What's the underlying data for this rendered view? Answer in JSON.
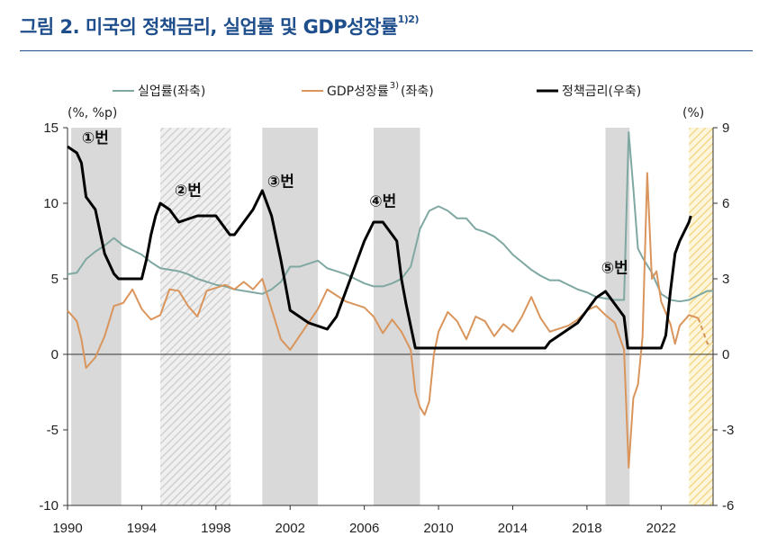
{
  "title": {
    "main": "그림 2. 미국의 정책금리, 실업률 및 GDP성장률",
    "sup": "1)2)"
  },
  "chart_data": {
    "type": "line",
    "left_unit": "(%, %p)",
    "right_unit": "(%)",
    "left_ylim": [
      -10,
      15
    ],
    "right_ylim": [
      -6,
      9
    ],
    "left_ticks": [
      "15",
      "10",
      "5",
      "0",
      "-5",
      "-10"
    ],
    "right_ticks": [
      "9",
      "6",
      "3",
      "0",
      "-3",
      "-6"
    ],
    "xlim": [
      1990,
      2024.8
    ],
    "x_ticks": [
      "1990",
      "1994",
      "1998",
      "2002",
      "2006",
      "2010",
      "2014",
      "2018",
      "2022"
    ],
    "legend": [
      {
        "label": "실업률(좌축)",
        "sup": "",
        "color": "#7fa8a2"
      },
      {
        "label": "GDP성장률",
        "sup": "3)",
        "suffix": "(좌축)",
        "color": "#d9955c"
      },
      {
        "label": "정책금리(우축)",
        "sup": "",
        "color": "#000000"
      }
    ],
    "shaded_periods": [
      {
        "start": 1990.2,
        "end": 1992.9,
        "style": "solid"
      },
      {
        "start": 1995.0,
        "end": 1998.8,
        "style": "hatched"
      },
      {
        "start": 2000.5,
        "end": 2003.5,
        "style": "solid"
      },
      {
        "start": 2006.5,
        "end": 2009.0,
        "style": "solid"
      },
      {
        "start": 2019.0,
        "end": 2020.3,
        "style": "solid"
      },
      {
        "start": 2023.5,
        "end": 2024.8,
        "style": "hatched-yellow"
      }
    ],
    "annotations": [
      {
        "text": "①번",
        "x": 1991.5,
        "y": 14.0
      },
      {
        "text": "②번",
        "x": 1996.5,
        "y": 10.5
      },
      {
        "text": "③번",
        "x": 2001.5,
        "y": 11.1
      },
      {
        "text": "④번",
        "x": 2007.0,
        "y": 9.8
      },
      {
        "text": "⑤번",
        "x": 2019.5,
        "y": 5.4
      }
    ],
    "series": [
      {
        "name": "실업률(좌축)",
        "axis": "left",
        "color": "#7fa8a2",
        "points": [
          [
            1990,
            5.3
          ],
          [
            1990.5,
            5.4
          ],
          [
            1991,
            6.3
          ],
          [
            1991.5,
            6.8
          ],
          [
            1992,
            7.2
          ],
          [
            1992.5,
            7.7
          ],
          [
            1993,
            7.2
          ],
          [
            1993.5,
            6.9
          ],
          [
            1994,
            6.6
          ],
          [
            1994.5,
            6.1
          ],
          [
            1995,
            5.7
          ],
          [
            1995.5,
            5.6
          ],
          [
            1996,
            5.5
          ],
          [
            1996.5,
            5.3
          ],
          [
            1997,
            5.0
          ],
          [
            1997.5,
            4.8
          ],
          [
            1998,
            4.6
          ],
          [
            1998.5,
            4.5
          ],
          [
            1999,
            4.3
          ],
          [
            1999.5,
            4.2
          ],
          [
            2000,
            4.1
          ],
          [
            2000.5,
            4.0
          ],
          [
            2001,
            4.3
          ],
          [
            2001.5,
            4.8
          ],
          [
            2002,
            5.8
          ],
          [
            2002.5,
            5.8
          ],
          [
            2003,
            6.0
          ],
          [
            2003.5,
            6.2
          ],
          [
            2004,
            5.7
          ],
          [
            2004.5,
            5.5
          ],
          [
            2005,
            5.3
          ],
          [
            2005.5,
            5.0
          ],
          [
            2006,
            4.7
          ],
          [
            2006.5,
            4.5
          ],
          [
            2007,
            4.5
          ],
          [
            2007.5,
            4.7
          ],
          [
            2008,
            5.0
          ],
          [
            2008.5,
            5.8
          ],
          [
            2009,
            8.3
          ],
          [
            2009.5,
            9.5
          ],
          [
            2010,
            9.8
          ],
          [
            2010.5,
            9.5
          ],
          [
            2011,
            9.0
          ],
          [
            2011.5,
            9.0
          ],
          [
            2012,
            8.3
          ],
          [
            2012.5,
            8.1
          ],
          [
            2013,
            7.8
          ],
          [
            2013.5,
            7.3
          ],
          [
            2014,
            6.6
          ],
          [
            2014.5,
            6.1
          ],
          [
            2015,
            5.6
          ],
          [
            2015.5,
            5.2
          ],
          [
            2016,
            4.9
          ],
          [
            2016.5,
            4.9
          ],
          [
            2017,
            4.6
          ],
          [
            2017.5,
            4.3
          ],
          [
            2018,
            4.1
          ],
          [
            2018.5,
            3.8
          ],
          [
            2019,
            3.7
          ],
          [
            2019.5,
            3.6
          ],
          [
            2020,
            3.6
          ],
          [
            2020.25,
            14.7
          ],
          [
            2020.5,
            11.0
          ],
          [
            2020.75,
            7.0
          ],
          [
            2021,
            6.4
          ],
          [
            2021.5,
            5.4
          ],
          [
            2022,
            4.0
          ],
          [
            2022.5,
            3.6
          ],
          [
            2023,
            3.5
          ],
          [
            2023.5,
            3.6
          ],
          [
            2024,
            3.9
          ],
          [
            2024.5,
            4.2
          ],
          [
            2024.8,
            4.2
          ]
        ]
      },
      {
        "name": "GDP성장률",
        "axis": "left",
        "color": "#d9955c",
        "dash_from": 2024.0,
        "points": [
          [
            1990,
            2.9
          ],
          [
            1990.5,
            2.2
          ],
          [
            1990.75,
            1.0
          ],
          [
            1991,
            -0.9
          ],
          [
            1991.5,
            -0.2
          ],
          [
            1992,
            1.2
          ],
          [
            1992.5,
            3.2
          ],
          [
            1993,
            3.4
          ],
          [
            1993.5,
            4.3
          ],
          [
            1994,
            3.0
          ],
          [
            1994.5,
            2.3
          ],
          [
            1995,
            2.6
          ],
          [
            1995.5,
            4.3
          ],
          [
            1996,
            4.2
          ],
          [
            1996.5,
            3.2
          ],
          [
            1997,
            2.5
          ],
          [
            1997.5,
            4.2
          ],
          [
            1998,
            4.4
          ],
          [
            1998.5,
            4.6
          ],
          [
            1999,
            4.3
          ],
          [
            1999.5,
            4.8
          ],
          [
            2000,
            4.3
          ],
          [
            2000.5,
            5.0
          ],
          [
            2001,
            3.0
          ],
          [
            2001.5,
            1.0
          ],
          [
            2002,
            0.3
          ],
          [
            2002.5,
            1.2
          ],
          [
            2003,
            2.1
          ],
          [
            2003.5,
            3.0
          ],
          [
            2004,
            4.3
          ],
          [
            2004.5,
            3.9
          ],
          [
            2005,
            3.5
          ],
          [
            2005.5,
            3.3
          ],
          [
            2006,
            3.1
          ],
          [
            2006.5,
            2.5
          ],
          [
            2007,
            1.4
          ],
          [
            2007.5,
            2.3
          ],
          [
            2008,
            1.5
          ],
          [
            2008.5,
            0.3
          ],
          [
            2008.75,
            -2.5
          ],
          [
            2009,
            -3.5
          ],
          [
            2009.25,
            -4.0
          ],
          [
            2009.5,
            -3.1
          ],
          [
            2009.75,
            0.0
          ],
          [
            2010,
            1.5
          ],
          [
            2010.5,
            2.8
          ],
          [
            2011,
            2.2
          ],
          [
            2011.5,
            1.0
          ],
          [
            2012,
            2.5
          ],
          [
            2012.5,
            2.2
          ],
          [
            2013,
            1.2
          ],
          [
            2013.5,
            2.0
          ],
          [
            2014,
            1.5
          ],
          [
            2014.5,
            2.5
          ],
          [
            2015,
            3.8
          ],
          [
            2015.5,
            2.4
          ],
          [
            2016,
            1.5
          ],
          [
            2016.5,
            1.7
          ],
          [
            2017,
            1.9
          ],
          [
            2017.5,
            2.3
          ],
          [
            2018,
            2.9
          ],
          [
            2018.5,
            3.2
          ],
          [
            2019,
            2.6
          ],
          [
            2019.5,
            2.1
          ],
          [
            2020,
            0.3
          ],
          [
            2020.25,
            -7.5
          ],
          [
            2020.5,
            -2.9
          ],
          [
            2020.75,
            -2.0
          ],
          [
            2021,
            1.2
          ],
          [
            2021.25,
            12.0
          ],
          [
            2021.5,
            5.0
          ],
          [
            2021.75,
            5.5
          ],
          [
            2022,
            3.5
          ],
          [
            2022.5,
            2.0
          ],
          [
            2022.75,
            0.7
          ],
          [
            2023,
            1.9
          ],
          [
            2023.5,
            2.6
          ],
          [
            2024,
            2.4
          ],
          [
            2024.5,
            0.7
          ],
          [
            2024.8,
            0.7
          ]
        ]
      },
      {
        "name": "정책금리(우축)",
        "axis": "right",
        "color": "#000000",
        "points": [
          [
            1990,
            8.25
          ],
          [
            1990.5,
            8.0
          ],
          [
            1990.75,
            7.6
          ],
          [
            1991,
            6.25
          ],
          [
            1991.5,
            5.75
          ],
          [
            1992,
            4.0
          ],
          [
            1992.5,
            3.2
          ],
          [
            1992.75,
            3.0
          ],
          [
            1993,
            3.0
          ],
          [
            1994,
            3.0
          ],
          [
            1994.25,
            3.75
          ],
          [
            1994.5,
            4.75
          ],
          [
            1994.75,
            5.5
          ],
          [
            1995,
            6.0
          ],
          [
            1995.5,
            5.75
          ],
          [
            1996,
            5.25
          ],
          [
            1997,
            5.5
          ],
          [
            1998,
            5.5
          ],
          [
            1998.75,
            4.75
          ],
          [
            1999,
            4.75
          ],
          [
            1999.5,
            5.25
          ],
          [
            2000,
            5.75
          ],
          [
            2000.5,
            6.5
          ],
          [
            2001,
            5.5
          ],
          [
            2001.5,
            3.75
          ],
          [
            2002,
            1.75
          ],
          [
            2003,
            1.25
          ],
          [
            2004,
            1.0
          ],
          [
            2004.5,
            1.5
          ],
          [
            2005,
            2.5
          ],
          [
            2005.5,
            3.5
          ],
          [
            2006,
            4.5
          ],
          [
            2006.5,
            5.25
          ],
          [
            2007,
            5.25
          ],
          [
            2007.75,
            4.5
          ],
          [
            2008,
            3.0
          ],
          [
            2008.25,
            2.0
          ],
          [
            2008.75,
            0.25
          ],
          [
            2009,
            0.25
          ],
          [
            2015.75,
            0.25
          ],
          [
            2016,
            0.5
          ],
          [
            2017,
            1.0
          ],
          [
            2017.5,
            1.25
          ],
          [
            2018,
            1.75
          ],
          [
            2018.5,
            2.25
          ],
          [
            2019,
            2.5
          ],
          [
            2019.5,
            2.0
          ],
          [
            2020,
            1.5
          ],
          [
            2020.2,
            0.25
          ],
          [
            2022,
            0.25
          ],
          [
            2022.25,
            0.75
          ],
          [
            2022.5,
            2.5
          ],
          [
            2022.75,
            4.0
          ],
          [
            2023,
            4.5
          ],
          [
            2023.5,
            5.25
          ],
          [
            2023.6,
            5.5
          ]
        ]
      }
    ]
  }
}
